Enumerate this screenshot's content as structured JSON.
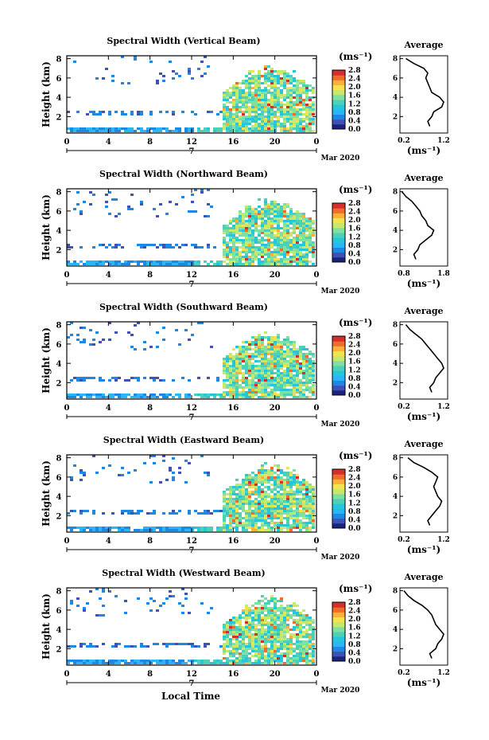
{
  "figure": {
    "xlabel": "Local Time",
    "day_label": "7",
    "month_label": "Mar 2020"
  },
  "colorbar": {
    "unit": "(ms⁻¹)",
    "ticks": [
      "0.0",
      "0.4",
      "0.8",
      "1.2",
      "1.6",
      "2.0",
      "2.4",
      "2.8"
    ],
    "colors": [
      "#1a237e",
      "#3f51b5",
      "#1e88e5",
      "#29b6f6",
      "#26c6da",
      "#4dd0b8",
      "#81e0a0",
      "#c6e86b",
      "#f3e34f",
      "#fbb03b",
      "#f06c2a",
      "#d32f2f"
    ]
  },
  "avg_labels": {
    "title": "Average",
    "unit": "(ms⁻¹)"
  },
  "chart_data": [
    {
      "type": "heatmap",
      "title": "Spectral Width (Vertical Beam)",
      "ylabel": "Height (km)",
      "xlabel": "Local Time",
      "xlim": [
        0,
        24
      ],
      "ylim": [
        0,
        8
      ],
      "xticks": [
        "0",
        "4",
        "8",
        "12",
        "16",
        "20",
        "0"
      ],
      "yticks": [
        "2",
        "4",
        "6",
        "8"
      ],
      "colorbar_range": [
        0.0,
        2.8
      ],
      "side_plot": {
        "title": "Average",
        "xticks": [
          "0.2",
          "1.2"
        ],
        "xlim": [
          0.2,
          1.4
        ],
        "height_km": [
          1.0,
          1.5,
          2.0,
          2.5,
          3.0,
          3.5,
          4.0,
          4.5,
          5.0,
          5.5,
          6.0,
          6.5,
          7.0,
          7.5,
          8.0
        ],
        "mean_width": [
          0.95,
          0.9,
          1.0,
          1.05,
          1.25,
          1.3,
          1.2,
          1.0,
          0.95,
          0.9,
          0.85,
          0.9,
          0.8,
          0.55,
          0.35
        ]
      }
    },
    {
      "type": "heatmap",
      "title": "Spectral Width (Northward Beam)",
      "ylabel": "Height (km)",
      "xlabel": "Local Time",
      "xlim": [
        0,
        24
      ],
      "ylim": [
        0,
        8
      ],
      "xticks": [
        "0",
        "4",
        "8",
        "12",
        "16",
        "20",
        "0"
      ],
      "yticks": [
        "2",
        "4",
        "6",
        "8"
      ],
      "colorbar_range": [
        0.0,
        2.8
      ],
      "side_plot": {
        "title": "Average",
        "xticks": [
          "0.8",
          "1.8"
        ],
        "xlim": [
          0.8,
          2.0
        ],
        "height_km": [
          1.0,
          1.5,
          2.0,
          2.5,
          3.0,
          3.5,
          4.0,
          4.5,
          5.0,
          5.5,
          6.0,
          6.5,
          7.0,
          7.5,
          8.0
        ],
        "mean_width": [
          1.2,
          1.15,
          1.25,
          1.3,
          1.45,
          1.6,
          1.65,
          1.5,
          1.45,
          1.35,
          1.3,
          1.2,
          1.1,
          0.95,
          0.85
        ]
      }
    },
    {
      "type": "heatmap",
      "title": "Spectral Width (Southward Beam)",
      "ylabel": "Height (km)",
      "xlabel": "Local Time",
      "xlim": [
        0,
        24
      ],
      "ylim": [
        0,
        8
      ],
      "xticks": [
        "0",
        "4",
        "8",
        "12",
        "16",
        "20",
        "0"
      ],
      "yticks": [
        "2",
        "4",
        "6",
        "8"
      ],
      "colorbar_range": [
        0.0,
        2.8
      ],
      "side_plot": {
        "title": "Average",
        "xticks": [
          "0.2",
          "1.2"
        ],
        "xlim": [
          0.2,
          1.4
        ],
        "height_km": [
          1.0,
          1.5,
          2.0,
          2.5,
          3.0,
          3.5,
          4.0,
          4.5,
          5.0,
          5.5,
          6.0,
          6.5,
          7.0,
          7.5,
          8.0
        ],
        "mean_width": [
          1.0,
          0.95,
          1.05,
          1.1,
          1.2,
          1.3,
          1.25,
          1.15,
          1.05,
          0.95,
          0.85,
          0.75,
          0.6,
          0.45,
          0.35
        ]
      }
    },
    {
      "type": "heatmap",
      "title": "Spectral Width (Eastward Beam)",
      "ylabel": "Height (km)",
      "xlabel": "Local Time",
      "xlim": [
        0,
        24
      ],
      "ylim": [
        0,
        8
      ],
      "xticks": [
        "0",
        "4",
        "8",
        "12",
        "16",
        "20",
        "0"
      ],
      "yticks": [
        "2",
        "4",
        "6",
        "8"
      ],
      "colorbar_range": [
        0.0,
        2.8
      ],
      "side_plot": {
        "title": "Average",
        "xticks": [
          "0.2",
          "1.2"
        ],
        "xlim": [
          0.2,
          1.4
        ],
        "height_km": [
          1.0,
          1.5,
          2.0,
          2.5,
          3.0,
          3.5,
          4.0,
          4.5,
          5.0,
          5.5,
          6.0,
          6.5,
          7.0,
          7.5,
          8.0
        ],
        "mean_width": [
          0.95,
          0.9,
          1.0,
          1.1,
          1.2,
          1.25,
          1.15,
          1.1,
          1.05,
          1.1,
          1.15,
          1.0,
          0.8,
          0.55,
          0.4
        ]
      }
    },
    {
      "type": "heatmap",
      "title": "Spectral Width (Westward Beam)",
      "ylabel": "Height (km)",
      "xlabel": "Local Time",
      "xlim": [
        0,
        24
      ],
      "ylim": [
        0,
        8
      ],
      "xticks": [
        "0",
        "4",
        "8",
        "12",
        "16",
        "20",
        "0"
      ],
      "yticks": [
        "2",
        "4",
        "6",
        "8"
      ],
      "colorbar_range": [
        0.0,
        2.8
      ],
      "side_plot": {
        "title": "Average",
        "xticks": [
          "0.2",
          "1.2"
        ],
        "xlim": [
          0.2,
          1.4
        ],
        "height_km": [
          1.0,
          1.5,
          2.0,
          2.5,
          3.0,
          3.5,
          4.0,
          4.5,
          5.0,
          5.5,
          6.0,
          6.5,
          7.0,
          7.5,
          8.0
        ],
        "mean_width": [
          1.0,
          0.95,
          1.1,
          1.15,
          1.25,
          1.3,
          1.2,
          1.1,
          1.05,
          1.0,
          0.9,
          0.75,
          0.55,
          0.4,
          0.3
        ]
      }
    }
  ]
}
